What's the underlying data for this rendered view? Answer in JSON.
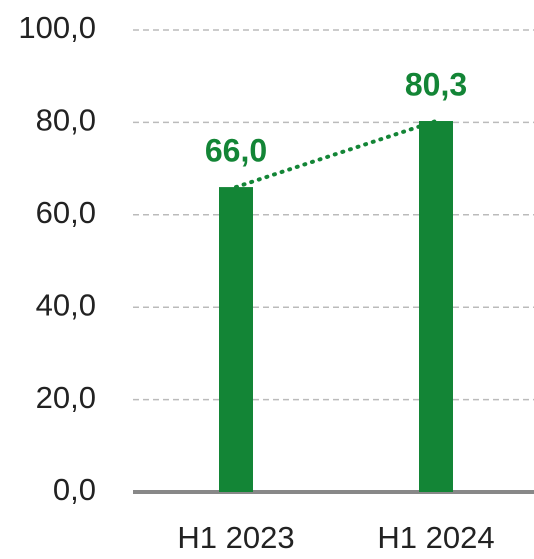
{
  "chart_data": {
    "type": "bar",
    "categories": [
      "H1 2023",
      "H1 2024"
    ],
    "values": [
      66.0,
      80.3
    ],
    "value_labels": [
      "66,0",
      "80,3"
    ],
    "color": "#138536",
    "ylim": [
      0,
      100
    ],
    "yticks": [
      {
        "value": 0,
        "label": "0,0"
      },
      {
        "value": 20,
        "label": "20,0"
      },
      {
        "value": 40,
        "label": "40,0"
      },
      {
        "value": 60,
        "label": "60,0"
      },
      {
        "value": 80,
        "label": "80,0"
      },
      {
        "value": 100,
        "label": "100,0"
      }
    ],
    "grid": true,
    "trend_line": true
  }
}
